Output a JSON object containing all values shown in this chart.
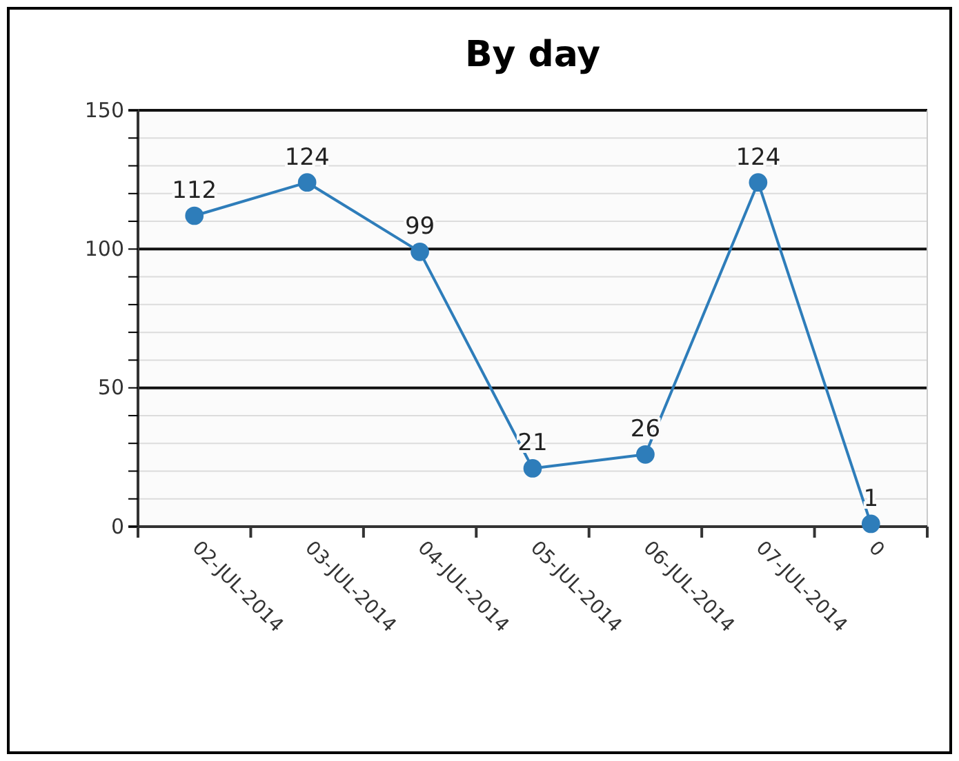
{
  "chart_data": {
    "type": "line",
    "title": "By day",
    "categories": [
      "02-JUL-2014",
      "03-JUL-2014",
      "04-JUL-2014",
      "05-JUL-2014",
      "06-JUL-2014",
      "07-JUL-2014",
      "0"
    ],
    "series": [
      {
        "color": "#2e7dba",
        "values": [
          112,
          124,
          99,
          21,
          26,
          124,
          1
        ]
      }
    ],
    "ylim": [
      0,
      150
    ],
    "yticks": [
      0,
      {
        "value": 10,
        "label": null
      },
      {
        "value": 20,
        "label": null
      },
      {
        "value": 30,
        "label": null
      },
      {
        "value": 40,
        "label": null
      },
      50,
      {
        "value": 60,
        "label": null
      },
      {
        "value": 70,
        "label": null
      },
      {
        "value": 80,
        "label": null
      },
      {
        "value": 90,
        "label": null
      },
      100,
      {
        "value": 110,
        "label": null
      },
      {
        "value": 120,
        "label": null
      },
      {
        "value": 130,
        "label": null
      },
      {
        "value": 140,
        "label": null
      },
      150
    ],
    "grid": "y",
    "data_labels": true,
    "marker": "circle",
    "line_style": "solid"
  }
}
